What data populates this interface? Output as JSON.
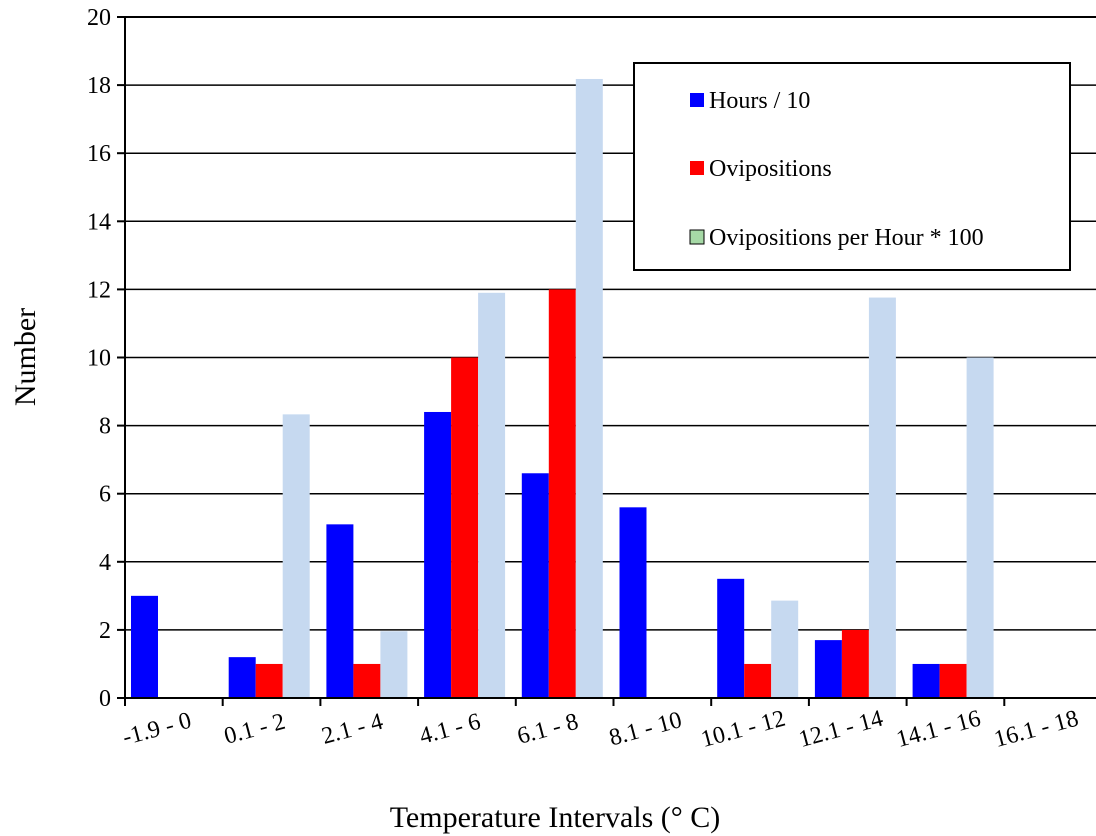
{
  "chart_data": {
    "type": "bar",
    "title": "",
    "xlabel": "Temperature Intervals (° C)",
    "ylabel": "Number",
    "ylim": [
      0,
      20
    ],
    "yticks": [
      0,
      2,
      4,
      6,
      8,
      10,
      12,
      14,
      16,
      18,
      20
    ],
    "grid": true,
    "legend_position": "top-right",
    "categories": [
      "-1.9 - 0",
      "0.1 - 2",
      "2.1 - 4",
      "4.1 - 6",
      "6.1 - 8",
      "8.1 - 10",
      "10.1 - 12",
      "12.1 - 14",
      "14.1 - 16",
      "16.1 - 18"
    ],
    "series": [
      {
        "name": "Hours / 10",
        "color": "#0000ff",
        "values": [
          3.0,
          1.2,
          5.1,
          8.4,
          6.6,
          5.6,
          3.5,
          1.7,
          1.0,
          0
        ]
      },
      {
        "name": "Ovipositions",
        "color": "#ff0000",
        "values": [
          0,
          1,
          1,
          10,
          12,
          0,
          1,
          2,
          1,
          0
        ]
      },
      {
        "name": "Ovipositions per Hour * 100",
        "color": "#c6d9f0",
        "legend_swatch_color": "#a6d9a6",
        "values": [
          0,
          8.33,
          1.96,
          11.9,
          18.18,
          0,
          2.86,
          11.76,
          10.0,
          0
        ]
      }
    ]
  }
}
